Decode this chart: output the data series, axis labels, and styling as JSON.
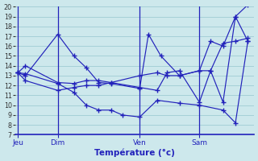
{
  "xlabel": "Température (°c)",
  "bg_color": "#cde8ec",
  "grid_color": "#9fccd4",
  "line_color": "#2222bb",
  "axis_color": "#2222bb",
  "ylim": [
    7,
    20
  ],
  "yticks": [
    7,
    8,
    9,
    10,
    11,
    12,
    13,
    14,
    15,
    16,
    17,
    18,
    19,
    20
  ],
  "xlabel_color": "#2222bb",
  "xtick_color": "#2222bb",
  "vline_color": "#2222bb",
  "day_positions": [
    0,
    3.2,
    9.8,
    14.6
  ],
  "day_labels": [
    "Jeu",
    "Dim",
    "Ven",
    "Sam"
  ],
  "xlim": [
    -0.2,
    19.0
  ],
  "series": [
    {
      "x": [
        0,
        0.6,
        3.2,
        4.5,
        5.5,
        6.5,
        7.5,
        8.4,
        9.8,
        11.2,
        13.0,
        14.6,
        16.5,
        17.5,
        18.5
      ],
      "y": [
        13.3,
        13.2,
        12.2,
        11.3,
        10.0,
        9.5,
        9.5,
        9.0,
        8.8,
        10.5,
        10.2,
        10.0,
        9.5,
        8.2,
        16.5
      ]
    },
    {
      "x": [
        0,
        0.6,
        3.2,
        4.5,
        5.5,
        6.5,
        7.5,
        9.8,
        11.2,
        12.0,
        13.0,
        14.6,
        15.5,
        16.5,
        17.5,
        18.5
      ],
      "y": [
        13.3,
        14.0,
        12.3,
        12.2,
        12.5,
        12.5,
        12.3,
        13.0,
        13.3,
        13.0,
        13.0,
        13.5,
        16.5,
        16.0,
        19.0,
        16.5
      ]
    },
    {
      "x": [
        0,
        0.6,
        3.2,
        4.5,
        5.5,
        6.5,
        7.5,
        9.8,
        10.5,
        11.5,
        13.0,
        14.6,
        15.5,
        16.5,
        17.5,
        18.5
      ],
      "y": [
        13.3,
        13.0,
        17.2,
        15.0,
        13.8,
        12.3,
        12.2,
        11.7,
        17.2,
        15.0,
        13.0,
        13.5,
        13.5,
        10.3,
        19.0,
        20.2
      ]
    },
    {
      "x": [
        0,
        0.6,
        3.2,
        4.5,
        5.5,
        6.5,
        7.5,
        9.8,
        11.2,
        12.0,
        13.0,
        14.6,
        15.5,
        16.5,
        17.5,
        18.5
      ],
      "y": [
        13.3,
        12.5,
        11.5,
        11.8,
        12.0,
        12.0,
        12.3,
        11.8,
        11.5,
        13.3,
        13.5,
        10.3,
        13.5,
        16.3,
        16.5,
        16.8
      ]
    }
  ]
}
